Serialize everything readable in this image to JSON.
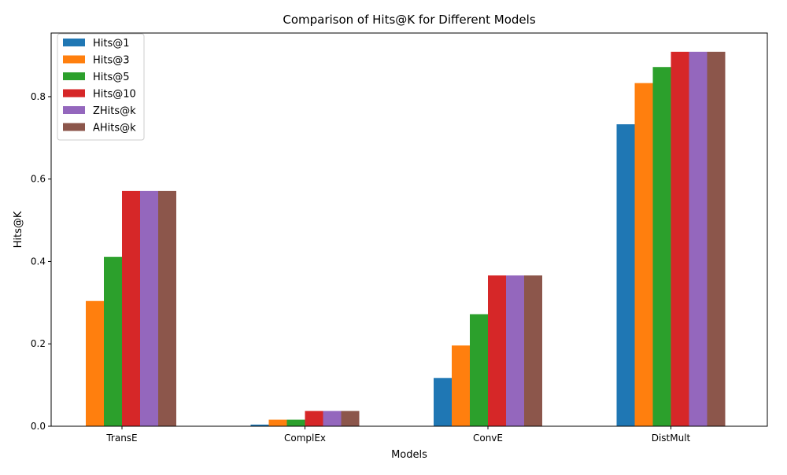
{
  "chart_data": {
    "type": "bar",
    "title": "Comparison of Hits@K for Different Models",
    "xlabel": "Models",
    "ylabel": "Hits@K",
    "categories": [
      "TransE",
      "ComplEx",
      "ConvE",
      "DistMult"
    ],
    "series": [
      {
        "name": "Hits@1",
        "color": "#1f77b4",
        "values": [
          0.0,
          0.004,
          0.117,
          0.733
        ]
      },
      {
        "name": "Hits@3",
        "color": "#ff7f0e",
        "values": [
          0.304,
          0.016,
          0.196,
          0.833
        ]
      },
      {
        "name": "Hits@5",
        "color": "#2ca02c",
        "values": [
          0.411,
          0.016,
          0.272,
          0.872
        ]
      },
      {
        "name": "Hits@10",
        "color": "#d62728",
        "values": [
          0.571,
          0.037,
          0.366,
          0.909
        ]
      },
      {
        "name": "ZHits@k",
        "color": "#9467bd",
        "values": [
          0.571,
          0.037,
          0.366,
          0.909
        ]
      },
      {
        "name": "AHits@k",
        "color": "#8c564b",
        "values": [
          0.571,
          0.037,
          0.366,
          0.909
        ]
      }
    ],
    "ylim": [
      0,
      0.9545
    ],
    "yticks": [
      0.0,
      0.2,
      0.4,
      0.6,
      0.8
    ],
    "ytick_labels": [
      "0.0",
      "0.2",
      "0.4",
      "0.6",
      "0.8"
    ],
    "grid": false,
    "legend_position": "top-left"
  }
}
